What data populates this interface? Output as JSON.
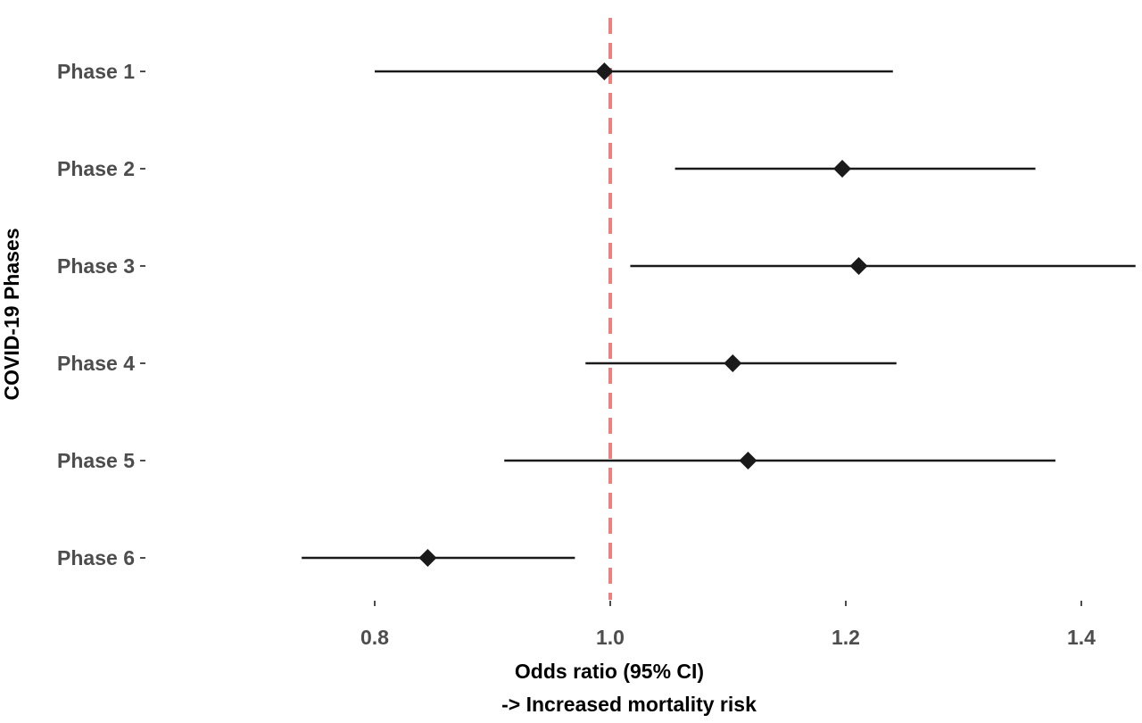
{
  "chart_data": {
    "type": "forest",
    "title": "",
    "xlabel_lines": [
      "Odds ratio (95% CI)",
      "-> Increased mortality risk"
    ],
    "ylabel": "COVID-19 Phases",
    "xlim": [
      0.7,
      1.45
    ],
    "x_ticks": [
      "0.8",
      "1.0",
      "1.2",
      "1.4"
    ],
    "reference_line": 1.0,
    "categories": [
      "Phase 1",
      "Phase 2",
      "Phase 3",
      "Phase 4",
      "Phase 5",
      "Phase 6"
    ],
    "estimates": [
      0.995,
      1.197,
      1.211,
      1.104,
      1.117,
      0.845
    ],
    "ci_lower": [
      0.8,
      1.055,
      1.017,
      0.979,
      0.91,
      0.738
    ],
    "ci_upper": [
      1.24,
      1.361,
      1.446,
      1.243,
      1.378,
      0.97
    ],
    "grid": false,
    "colors": {
      "reference": "#f08080",
      "marker": "#1a1a1a",
      "ci": "#1a1a1a"
    }
  }
}
